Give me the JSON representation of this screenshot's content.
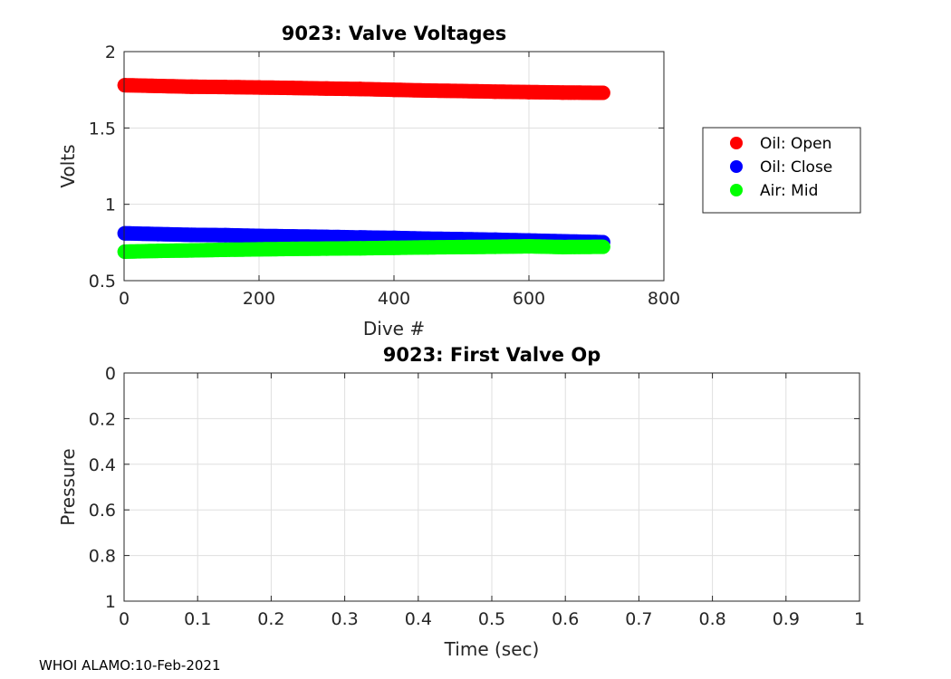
{
  "chart_data": [
    {
      "type": "scatter",
      "title": "9023: Valve Voltages",
      "xlabel": "Dive #",
      "ylabel": "Volts",
      "xlim": [
        0,
        800
      ],
      "ylim": [
        0.5,
        2
      ],
      "xticks": [
        0,
        200,
        400,
        600,
        800
      ],
      "yticks": [
        0.5,
        1,
        1.5,
        2
      ],
      "xtick_labels": [
        "0",
        "200",
        "400",
        "600",
        "800"
      ],
      "ytick_labels": [
        "0.5",
        "1",
        "1.5",
        "2"
      ],
      "grid": true,
      "legend_position": "outside-right",
      "series": [
        {
          "name": "Oil: Open",
          "color": "#ff0000",
          "x": [
            1,
            50,
            100,
            150,
            200,
            250,
            300,
            350,
            400,
            450,
            500,
            550,
            600,
            650,
            710
          ],
          "y": [
            1.78,
            1.775,
            1.77,
            1.768,
            1.765,
            1.762,
            1.758,
            1.755,
            1.75,
            1.745,
            1.742,
            1.738,
            1.735,
            1.732,
            1.73
          ]
        },
        {
          "name": "Oil: Close",
          "color": "#0000ff",
          "x": [
            1,
            50,
            100,
            150,
            200,
            250,
            300,
            350,
            400,
            450,
            500,
            550,
            600,
            650,
            710
          ],
          "y": [
            0.81,
            0.805,
            0.8,
            0.798,
            0.793,
            0.79,
            0.787,
            0.783,
            0.78,
            0.775,
            0.772,
            0.768,
            0.763,
            0.758,
            0.752
          ]
        },
        {
          "name": "Air: Mid",
          "color": "#00ff00",
          "x": [
            1,
            50,
            100,
            150,
            200,
            250,
            300,
            350,
            400,
            450,
            500,
            550,
            600,
            650,
            710
          ],
          "y": [
            0.69,
            0.695,
            0.698,
            0.702,
            0.705,
            0.708,
            0.71,
            0.712,
            0.715,
            0.718,
            0.72,
            0.722,
            0.725,
            0.72,
            0.722
          ]
        }
      ]
    },
    {
      "type": "line",
      "title": "9023: First Valve Op",
      "xlabel": "Time (sec)",
      "ylabel": "Pressure",
      "xlim": [
        0,
        1
      ],
      "ylim": [
        0,
        1
      ],
      "y_reversed": true,
      "xticks": [
        0,
        0.1,
        0.2,
        0.3,
        0.4,
        0.5,
        0.6,
        0.7,
        0.8,
        0.9,
        1
      ],
      "yticks": [
        0,
        0.2,
        0.4,
        0.6,
        0.8,
        1
      ],
      "xtick_labels": [
        "0",
        "0.1",
        "0.2",
        "0.3",
        "0.4",
        "0.5",
        "0.6",
        "0.7",
        "0.8",
        "0.9",
        "1"
      ],
      "ytick_labels": [
        "0",
        "0.2",
        "0.4",
        "0.6",
        "0.8",
        "1"
      ],
      "grid": true,
      "series": []
    }
  ],
  "footer": "WHOI ALAMO:10-Feb-2021"
}
